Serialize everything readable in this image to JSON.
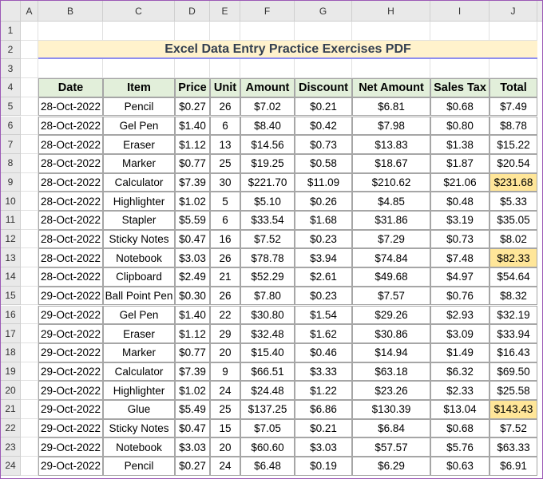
{
  "sheet": {
    "column_headers": [
      "A",
      "B",
      "C",
      "D",
      "E",
      "F",
      "G",
      "H",
      "I",
      "J"
    ],
    "row_numbers": [
      1,
      2,
      3,
      4,
      5,
      6,
      7,
      8,
      9,
      10,
      11,
      12,
      13,
      14,
      15,
      16,
      17,
      18,
      19,
      20,
      21,
      22,
      23,
      24
    ],
    "title": "Excel Data Entry Practice Exercises PDF",
    "table": {
      "columns": [
        "Date",
        "Item",
        "Price",
        "Unit",
        "Amount",
        "Discount",
        "Net Amount",
        "Sales Tax",
        "Total"
      ],
      "rows": [
        [
          "28-Oct-2022",
          "Pencil",
          "$0.27",
          26,
          "$7.02",
          "$0.21",
          "$6.81",
          "$0.68",
          "$7.49"
        ],
        [
          "28-Oct-2022",
          "Gel Pen",
          "$1.40",
          6,
          "$8.40",
          "$0.42",
          "$7.98",
          "$0.80",
          "$8.78"
        ],
        [
          "28-Oct-2022",
          "Eraser",
          "$1.12",
          13,
          "$14.56",
          "$0.73",
          "$13.83",
          "$1.38",
          "$15.22"
        ],
        [
          "28-Oct-2022",
          "Marker",
          "$0.77",
          25,
          "$19.25",
          "$0.58",
          "$18.67",
          "$1.87",
          "$20.54"
        ],
        [
          "28-Oct-2022",
          "Calculator",
          "$7.39",
          30,
          "$221.70",
          "$11.09",
          "$210.62",
          "$21.06",
          "$231.68"
        ],
        [
          "28-Oct-2022",
          "Highlighter",
          "$1.02",
          5,
          "$5.10",
          "$0.26",
          "$4.85",
          "$0.48",
          "$5.33"
        ],
        [
          "28-Oct-2022",
          "Stapler",
          "$5.59",
          6,
          "$33.54",
          "$1.68",
          "$31.86",
          "$3.19",
          "$35.05"
        ],
        [
          "28-Oct-2022",
          "Sticky Notes",
          "$0.47",
          16,
          "$7.52",
          "$0.23",
          "$7.29",
          "$0.73",
          "$8.02"
        ],
        [
          "28-Oct-2022",
          "Notebook",
          "$3.03",
          26,
          "$78.78",
          "$3.94",
          "$74.84",
          "$7.48",
          "$82.33"
        ],
        [
          "28-Oct-2022",
          "Clipboard",
          "$2.49",
          21,
          "$52.29",
          "$2.61",
          "$49.68",
          "$4.97",
          "$54.64"
        ],
        [
          "29-Oct-2022",
          "Ball Point Pen",
          "$0.30",
          26,
          "$7.80",
          "$0.23",
          "$7.57",
          "$0.76",
          "$8.32"
        ],
        [
          "29-Oct-2022",
          "Gel Pen",
          "$1.40",
          22,
          "$30.80",
          "$1.54",
          "$29.26",
          "$2.93",
          "$32.19"
        ],
        [
          "29-Oct-2022",
          "Eraser",
          "$1.12",
          29,
          "$32.48",
          "$1.62",
          "$30.86",
          "$3.09",
          "$33.94"
        ],
        [
          "29-Oct-2022",
          "Marker",
          "$0.77",
          20,
          "$15.40",
          "$0.46",
          "$14.94",
          "$1.49",
          "$16.43"
        ],
        [
          "29-Oct-2022",
          "Calculator",
          "$7.39",
          9,
          "$66.51",
          "$3.33",
          "$63.18",
          "$6.32",
          "$69.50"
        ],
        [
          "29-Oct-2022",
          "Highlighter",
          "$1.02",
          24,
          "$24.48",
          "$1.22",
          "$23.26",
          "$2.33",
          "$25.58"
        ],
        [
          "29-Oct-2022",
          "Glue",
          "$5.49",
          25,
          "$137.25",
          "$6.86",
          "$130.39",
          "$13.04",
          "$143.43"
        ],
        [
          "29-Oct-2022",
          "Sticky Notes",
          "$0.47",
          15,
          "$7.05",
          "$0.21",
          "$6.84",
          "$0.68",
          "$7.52"
        ],
        [
          "29-Oct-2022",
          "Notebook",
          "$3.03",
          20,
          "$60.60",
          "$3.03",
          "$57.57",
          "$5.76",
          "$63.33"
        ],
        [
          "29-Oct-2022",
          "Pencil",
          "$0.27",
          24,
          "$6.48",
          "$0.19",
          "$6.29",
          "$0.63",
          "$6.91"
        ]
      ],
      "highlight": {
        "color": "#ffe699",
        "column": 8,
        "rows": [
          4,
          8,
          16
        ]
      }
    }
  }
}
